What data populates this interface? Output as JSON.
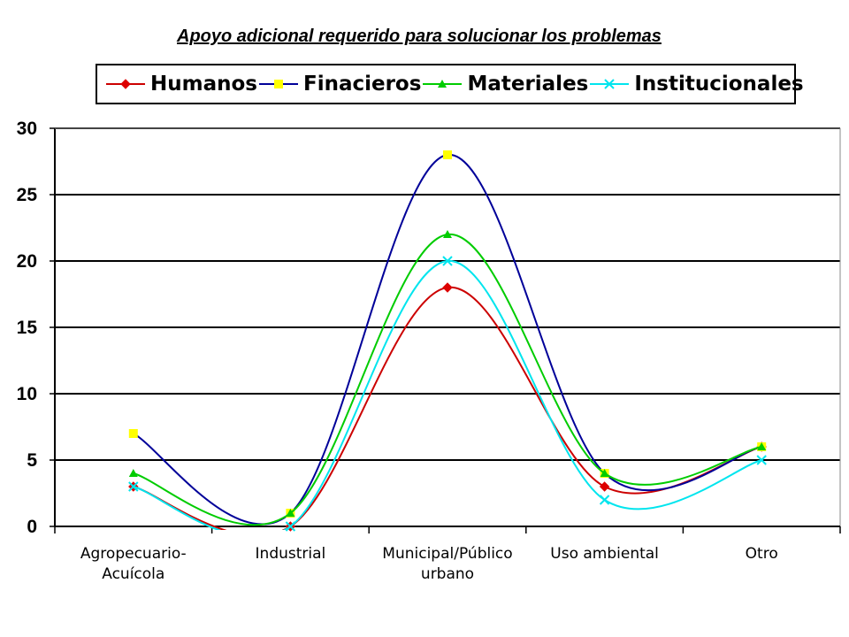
{
  "chart_data": {
    "type": "line",
    "title": "Apoyo adicional requerido para solucionar los problemas",
    "categories": [
      [
        "Agropecuario-",
        "Acuícola"
      ],
      [
        "Industrial"
      ],
      [
        "Municipal/Público",
        "urbano"
      ],
      [
        "Uso ambiental"
      ],
      [
        "Otro"
      ]
    ],
    "ylim": [
      0,
      30
    ],
    "yticks": [
      "0",
      "5",
      "10",
      "15",
      "20",
      "25",
      "30"
    ],
    "grid": true,
    "legend_position": "top",
    "smooth": true,
    "series": [
      {
        "name": "Humanos",
        "values": [
          3,
          0,
          18,
          3,
          6
        ],
        "color": "#cc0000",
        "marker": "diamond",
        "marker_color": "#dd0000"
      },
      {
        "name": "Finacieros",
        "values": [
          7,
          1,
          28,
          4,
          6
        ],
        "color": "#000099",
        "marker": "square",
        "marker_color": "#ffff00"
      },
      {
        "name": "Materiales",
        "values": [
          4,
          1,
          22,
          4,
          6
        ],
        "color": "#00cc00",
        "marker": "triangle",
        "marker_color": "#00cc00"
      },
      {
        "name": "Institucionales",
        "values": [
          3,
          0,
          20,
          2,
          5
        ],
        "color": "#00e5ee",
        "marker": "x",
        "marker_color": "#00e5ee"
      }
    ]
  }
}
